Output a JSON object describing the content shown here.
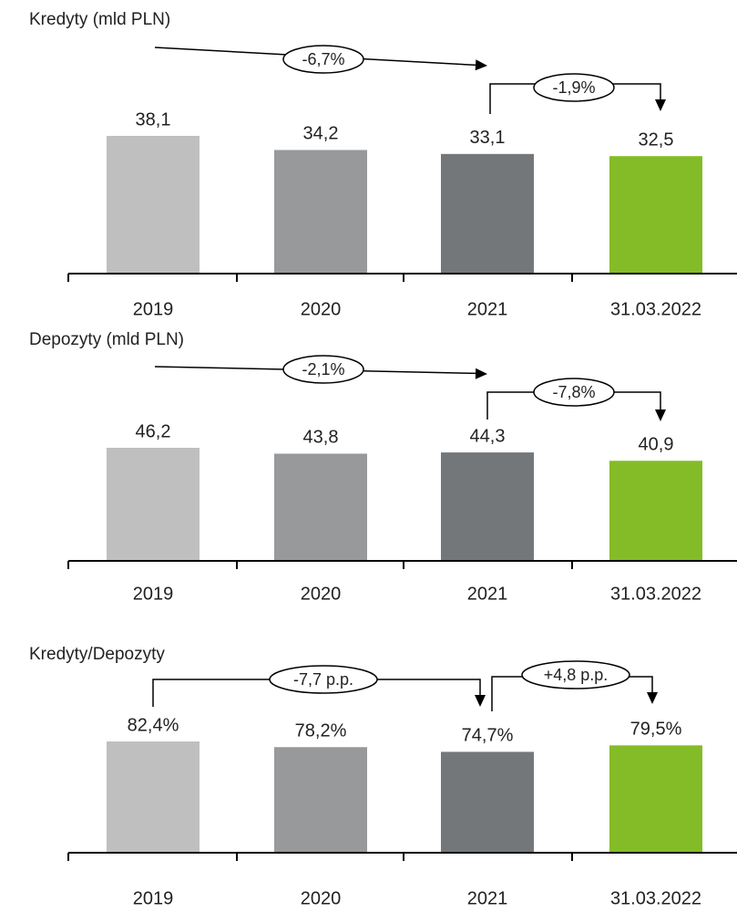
{
  "chart_data": [
    {
      "type": "bar",
      "title": "Kredyty (mld PLN)",
      "categories": [
        "2019",
        "2020",
        "2021",
        "31.03.2022"
      ],
      "values": [
        38.1,
        34.2,
        33.1,
        32.5
      ],
      "value_labels": [
        "38,1",
        "34,2",
        "33,1",
        "32,5"
      ],
      "colors": [
        "#bfbfbf",
        "#98999b",
        "#747779",
        "#84bc27"
      ],
      "annotations": [
        "-6,7%",
        "-1,9%"
      ]
    },
    {
      "type": "bar",
      "title": "Depozyty (mld PLN)",
      "categories": [
        "2019",
        "2020",
        "2021",
        "31.03.2022"
      ],
      "values": [
        46.2,
        43.8,
        44.3,
        40.9
      ],
      "value_labels": [
        "46,2",
        "43,8",
        "44,3",
        "40,9"
      ],
      "colors": [
        "#bfbfbf",
        "#98999b",
        "#747779",
        "#84bc27"
      ],
      "annotations": [
        "-2,1%",
        "-7,8%"
      ]
    },
    {
      "type": "bar",
      "title": "Kredyty/Depozyty",
      "categories": [
        "2019",
        "2020",
        "2021",
        "31.03.2022"
      ],
      "values": [
        82.4,
        78.2,
        74.7,
        79.5
      ],
      "value_labels": [
        "82,4%",
        "78,2%",
        "74,7%",
        "79,5%"
      ],
      "colors": [
        "#bfbfbf",
        "#98999b",
        "#747779",
        "#84bc27"
      ],
      "annotations": [
        "-7,7 p.p.",
        "+4,8 p.p."
      ]
    }
  ]
}
